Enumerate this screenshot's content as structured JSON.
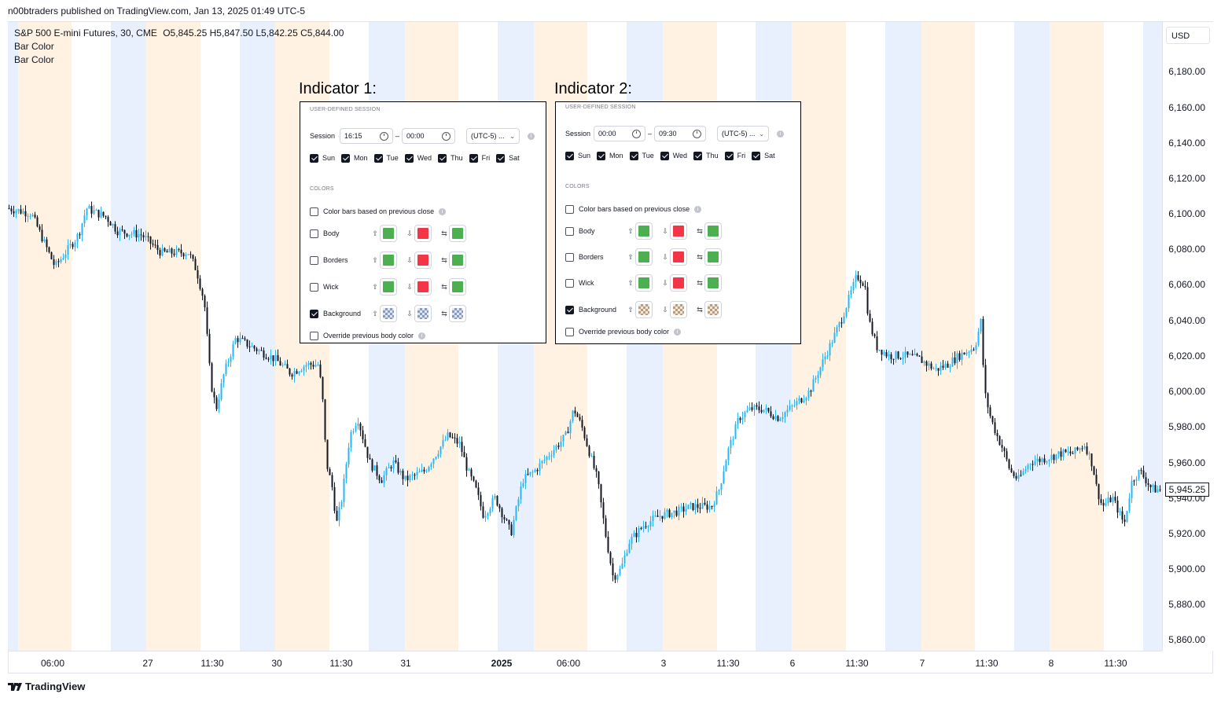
{
  "header": {
    "published": "n00btraders published on TradingView.com, Jan 13, 2025 01:49 UTC-5"
  },
  "legend": {
    "symbol": "S&P 500 E-mini Futures, 30, CME",
    "open_key": "O",
    "open": "5,845.25",
    "high_key": "H",
    "high": "5,847.50",
    "low_key": "L",
    "low": "5,842.25",
    "close_key": "C",
    "close": "5,844.00",
    "indicator_1": "Bar Color",
    "indicator_2": "Bar Color"
  },
  "price_axis": {
    "currency": "USD",
    "ticks": [
      "6,180.00",
      "6,160.00",
      "6,140.00",
      "6,120.00",
      "6,100.00",
      "6,080.00",
      "6,060.00",
      "6,040.00",
      "6,020.00",
      "6,000.00",
      "5,980.00",
      "5,960.00",
      "5,940.00",
      "5,920.00",
      "5,900.00",
      "5,880.00",
      "5,860.00"
    ],
    "last_price": "5,945.25"
  },
  "time_axis": {
    "labels": [
      "06:00",
      "27",
      "11:30",
      "30",
      "11:30",
      "31",
      "2025",
      "06:00",
      "3",
      "11:30",
      "6",
      "11:30",
      "7",
      "11:30",
      "8",
      "11:30"
    ]
  },
  "footer": {
    "brand": "TradingView"
  },
  "indicator_1": {
    "title": "Indicator 1:",
    "section_session": "USER-DEFINED SESSION",
    "session_label": "Session",
    "start": "16:15",
    "dash": "–",
    "end": "00:00",
    "timezone": "(UTC-5) ...",
    "days": [
      {
        "label": "Sun",
        "checked": true
      },
      {
        "label": "Mon",
        "checked": true
      },
      {
        "label": "Tue",
        "checked": true
      },
      {
        "label": "Wed",
        "checked": true
      },
      {
        "label": "Thu",
        "checked": true
      },
      {
        "label": "Fri",
        "checked": true
      },
      {
        "label": "Sat",
        "checked": true
      }
    ],
    "section_colors": "COLORS",
    "color_bars_label": "Color bars based on previous close",
    "rows": [
      {
        "label": "Body",
        "checked": false
      },
      {
        "label": "Borders",
        "checked": false
      },
      {
        "label": "Wick",
        "checked": false
      },
      {
        "label": "Background",
        "checked": true
      }
    ],
    "override_label": "Override previous body color",
    "up_color": "#4caf50",
    "down_color": "#f23645",
    "neutral_color": "#4caf50",
    "background_style": "checker-blue"
  },
  "indicator_2": {
    "title": "Indicator 2:",
    "section_session": "USER-DEFINED SESSION",
    "session_label": "Session",
    "start": "00:00",
    "dash": "–",
    "end": "09:30",
    "timezone": "(UTC-5) ...",
    "days": [
      {
        "label": "Sun",
        "checked": true
      },
      {
        "label": "Mon",
        "checked": true
      },
      {
        "label": "Tue",
        "checked": true
      },
      {
        "label": "Wed",
        "checked": true
      },
      {
        "label": "Thu",
        "checked": true
      },
      {
        "label": "Fri",
        "checked": true
      },
      {
        "label": "Sat",
        "checked": true
      }
    ],
    "section_colors": "COLORS",
    "color_bars_label": "Color bars based on previous close",
    "rows": [
      {
        "label": "Body",
        "checked": false
      },
      {
        "label": "Borders",
        "checked": false
      },
      {
        "label": "Wick",
        "checked": false
      },
      {
        "label": "Background",
        "checked": true
      }
    ],
    "override_label": "Override previous body color",
    "up_color": "#4caf50",
    "down_color": "#f23645",
    "neutral_color": "#4caf50",
    "background_style": "checker-tan"
  },
  "colors": {
    "up_candle": "#29b6f6",
    "down_candle": "#131722",
    "session_band_1": "#e8f0fd",
    "session_band_2": "#fff2e3"
  }
}
